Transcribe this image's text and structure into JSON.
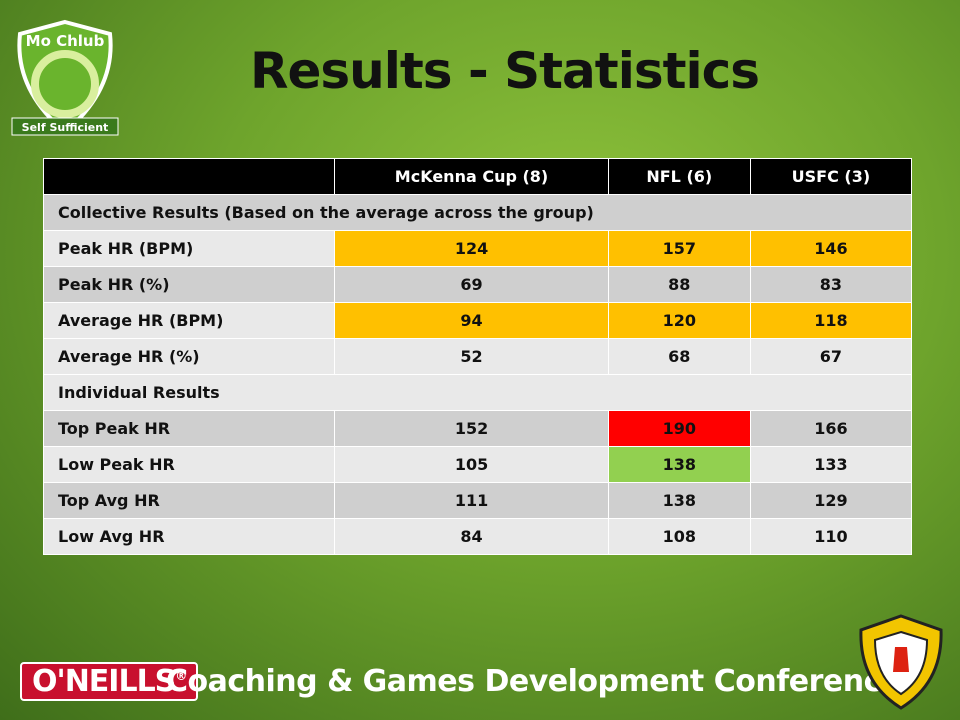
{
  "logo": {
    "top": "Mo Chlub",
    "bottom": "Self Sufficient"
  },
  "title": "Results - Statistics",
  "table": {
    "header": [
      "",
      "McKenna Cup (8)",
      "NFL (6)",
      "USFC (3)"
    ],
    "rows": [
      {
        "section": "Collective Results (Based on the average across the group)",
        "fill": "#cfcfcf"
      },
      {
        "label": "Peak HR (BPM)",
        "values": [
          124,
          157,
          146
        ],
        "fill": "#e9e9e9",
        "cell_fills": [
          "#ffc000",
          "#ffc000",
          "#ffc000"
        ]
      },
      {
        "label": "Peak HR (%)",
        "values": [
          69,
          88,
          83
        ],
        "fill": "#cfcfcf"
      },
      {
        "label": "Average HR (BPM)",
        "values": [
          94,
          120,
          118
        ],
        "fill": "#e9e9e9",
        "cell_fills": [
          "#ffc000",
          "#ffc000",
          "#ffc000"
        ]
      },
      {
        "label": "Average HR (%)",
        "values": [
          52,
          68,
          67
        ],
        "fill": "#e9e9e9"
      },
      {
        "section": "Individual Results",
        "fill": "#e9e9e9"
      },
      {
        "label": "Top Peak HR",
        "values": [
          152,
          190,
          166
        ],
        "fill": "#cfcfcf",
        "cell_fills": [
          null,
          "#ff0000",
          null
        ]
      },
      {
        "label": "Low Peak HR",
        "values": [
          105,
          138,
          133
        ],
        "fill": "#e9e9e9",
        "cell_fills": [
          null,
          "#92d050",
          null
        ]
      },
      {
        "label": "Top Avg HR",
        "values": [
          111,
          138,
          129
        ],
        "fill": "#cfcfcf"
      },
      {
        "label": "Low Avg HR",
        "values": [
          84,
          108,
          110
        ],
        "fill": "#e9e9e9"
      }
    ]
  },
  "footer": {
    "brand": "O'NEILLS",
    "brand_mark": "®",
    "text": "Coaching & Games Development Conference"
  }
}
